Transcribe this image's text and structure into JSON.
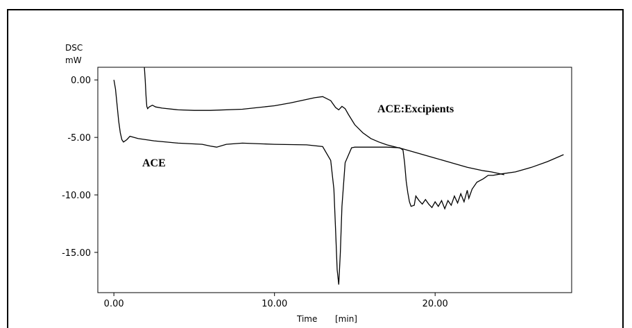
{
  "chart_data": {
    "type": "line",
    "title": "",
    "ylabel_line1": "DSC",
    "ylabel_line2": "mW",
    "xlabel_main": "Time",
    "xlabel_unit": "[min]",
    "xlim": [
      -1.0,
      28.5
    ],
    "ylim": [
      -18.5,
      1.1
    ],
    "xticks": [
      0,
      10,
      20
    ],
    "xtick_labels": [
      "0.00",
      "10.00",
      "20.00"
    ],
    "yticks": [
      0,
      -5,
      -10,
      -15
    ],
    "ytick_labels": [
      "0.00",
      "-5.00",
      "-10.00",
      "-15.00"
    ],
    "grid": false,
    "legend": "none",
    "series": [
      {
        "name": "ACE",
        "x": [
          0.0,
          0.1,
          0.2,
          0.3,
          0.4,
          0.5,
          0.6,
          0.8,
          1.0,
          1.5,
          2.5,
          4.0,
          5.5,
          6.0,
          6.4,
          7.0,
          8.0,
          10.0,
          12.0,
          13.0,
          13.5,
          13.7,
          13.8,
          13.9,
          14.0,
          14.1,
          14.2,
          14.4,
          14.8,
          15.0,
          16.0,
          17.0,
          17.8,
          18.0,
          18.1,
          18.2,
          18.3,
          18.4,
          18.5,
          18.7,
          18.8,
          19.0,
          19.2,
          19.4,
          19.6,
          19.8,
          20.0,
          20.2,
          20.4,
          20.6,
          20.8,
          21.0,
          21.2,
          21.4,
          21.6,
          21.8,
          22.0,
          22.1,
          22.3,
          22.6,
          23.0,
          23.3,
          23.6,
          24.0,
          25.0,
          26.0,
          27.0,
          28.0
        ],
        "y": [
          0.0,
          -0.8,
          -2.2,
          -3.6,
          -4.6,
          -5.2,
          -5.4,
          -5.2,
          -4.9,
          -5.1,
          -5.3,
          -5.5,
          -5.6,
          -5.75,
          -5.85,
          -5.6,
          -5.5,
          -5.6,
          -5.65,
          -5.8,
          -7.0,
          -9.5,
          -13.0,
          -16.5,
          -17.8,
          -15.0,
          -11.0,
          -7.2,
          -5.9,
          -5.85,
          -5.85,
          -5.85,
          -5.9,
          -6.1,
          -7.2,
          -8.8,
          -9.8,
          -10.6,
          -11.0,
          -10.9,
          -10.1,
          -10.5,
          -10.8,
          -10.4,
          -10.8,
          -11.1,
          -10.6,
          -11.0,
          -10.5,
          -11.2,
          -10.5,
          -10.9,
          -10.1,
          -10.7,
          -9.9,
          -10.6,
          -9.6,
          -10.3,
          -9.5,
          -8.9,
          -8.6,
          -8.3,
          -8.3,
          -8.2,
          -8.0,
          -7.6,
          -7.1,
          -6.5
        ]
      },
      {
        "name": "ACE:Excipients",
        "x": [
          1.9,
          1.95,
          2.0,
          2.05,
          2.1,
          2.2,
          2.4,
          2.6,
          3.0,
          4.0,
          5.0,
          6.0,
          8.0,
          10.0,
          11.0,
          12.0,
          12.5,
          13.0,
          13.5,
          13.8,
          14.0,
          14.2,
          14.4,
          14.6,
          15.0,
          15.5,
          16.0,
          16.5,
          17.0,
          18.0,
          19.0,
          20.0,
          21.0,
          22.0,
          23.0,
          23.5,
          24.0,
          24.3
        ],
        "y": [
          1.1,
          0.0,
          -1.4,
          -2.3,
          -2.5,
          -2.35,
          -2.2,
          -2.35,
          -2.45,
          -2.6,
          -2.65,
          -2.65,
          -2.55,
          -2.25,
          -2.0,
          -1.7,
          -1.55,
          -1.45,
          -1.8,
          -2.4,
          -2.6,
          -2.3,
          -2.5,
          -3.0,
          -3.9,
          -4.6,
          -5.1,
          -5.4,
          -5.65,
          -6.0,
          -6.4,
          -6.8,
          -7.2,
          -7.6,
          -7.9,
          -8.0,
          -8.15,
          -8.25
        ]
      }
    ]
  },
  "annotations": {
    "ace_label": "ACE",
    "excipients_label": "ACE:Excipients"
  }
}
